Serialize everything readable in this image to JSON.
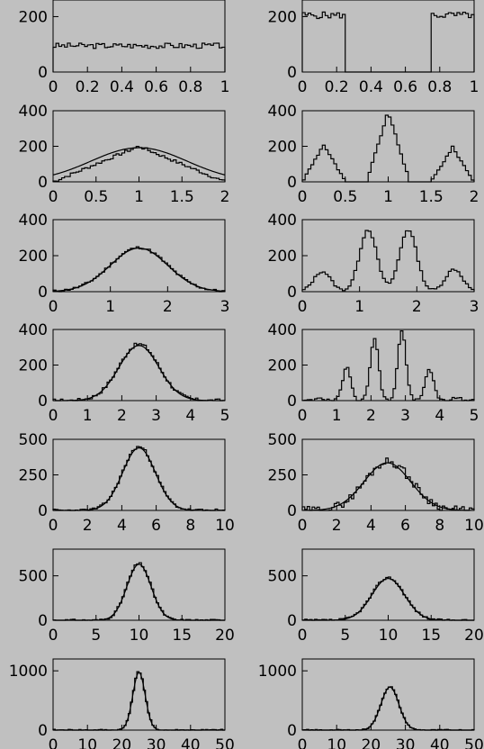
{
  "chart_data": [
    {
      "type": "histogram",
      "panel": "r1-left",
      "xlim": [
        0,
        1
      ],
      "ylim": [
        0,
        260
      ],
      "xticks": [
        0,
        0.2,
        0.4,
        0.6,
        0.8,
        1
      ],
      "xtick_labels": [
        "0",
        "0.2",
        "0.4",
        "0.6",
        "0.8",
        "1"
      ],
      "yticks": [
        0,
        200
      ],
      "ytick_labels": [
        "0",
        "200"
      ],
      "bins": 60,
      "shape": {
        "kind": "flat",
        "level": 95,
        "noise": 10,
        "seed": 3
      },
      "fit": null
    },
    {
      "type": "histogram",
      "panel": "r1-right",
      "xlim": [
        0,
        1
      ],
      "ylim": [
        0,
        260
      ],
      "xticks": [
        0,
        0.2,
        0.4,
        0.6,
        0.8,
        1
      ],
      "xtick_labels": [
        "0",
        "0.2",
        "0.4",
        "0.6",
        "0.8",
        "1"
      ],
      "yticks": [
        0,
        200
      ],
      "ytick_labels": [
        "0",
        "200"
      ],
      "bins": 60,
      "shape": {
        "kind": "gate",
        "level": 205,
        "noise": 12,
        "on": [
          [
            0,
            0.25
          ],
          [
            0.75,
            1
          ]
        ],
        "seed": 5
      },
      "fit": null
    },
    {
      "type": "histogram",
      "panel": "r2-left",
      "xlim": [
        0,
        2
      ],
      "ylim": [
        0,
        400
      ],
      "xticks": [
        0,
        0.5,
        1,
        1.5,
        2
      ],
      "xtick_labels": [
        "0",
        "0.5",
        "1",
        "1.5",
        "2"
      ],
      "yticks": [
        0,
        200,
        400
      ],
      "ytick_labels": [
        "0",
        "200",
        "400"
      ],
      "bins": 60,
      "shape": {
        "kind": "triangle",
        "peak": 200,
        "center": 1,
        "half": 1,
        "noise": 8,
        "seed": 7
      },
      "fit": {
        "kind": "gauss",
        "amp": 192,
        "mean": 1,
        "sigma": 0.56
      }
    },
    {
      "type": "histogram",
      "panel": "r2-right",
      "xlim": [
        0,
        2
      ],
      "ylim": [
        0,
        400
      ],
      "xticks": [
        0,
        0.5,
        1,
        1.5,
        2
      ],
      "xtick_labels": [
        "0",
        "0.5",
        "1",
        "1.5",
        "2"
      ],
      "yticks": [
        0,
        200,
        400
      ],
      "ytick_labels": [
        "0",
        "200",
        "400"
      ],
      "bins": 60,
      "shape": {
        "kind": "triangles",
        "peaks": [
          [
            0.25,
            210,
            0.25
          ],
          [
            1,
            395,
            0.25
          ],
          [
            1.75,
            195,
            0.25
          ]
        ],
        "noise": 6,
        "seed": 9
      },
      "fit": null
    },
    {
      "type": "histogram",
      "panel": "r3-left",
      "xlim": [
        0,
        3
      ],
      "ylim": [
        0,
        400
      ],
      "xticks": [
        0,
        1,
        2,
        3
      ],
      "xtick_labels": [
        "0",
        "1",
        "2",
        "3"
      ],
      "yticks": [
        0,
        200,
        400
      ],
      "ytick_labels": [
        "0",
        "200",
        "400"
      ],
      "bins": 60,
      "shape": {
        "kind": "gauss",
        "amp": 245,
        "mean": 1.5,
        "sigma": 0.5,
        "noise": 7,
        "seed": 11
      },
      "fit": {
        "kind": "gauss",
        "amp": 242,
        "mean": 1.5,
        "sigma": 0.5
      }
    },
    {
      "type": "histogram",
      "panel": "r3-right",
      "xlim": [
        0,
        3
      ],
      "ylim": [
        0,
        400
      ],
      "xticks": [
        0,
        1,
        2,
        3
      ],
      "xtick_labels": [
        "0",
        "1",
        "2",
        "3"
      ],
      "yticks": [
        0,
        200,
        400
      ],
      "ytick_labels": [
        "0",
        "200",
        "400"
      ],
      "bins": 60,
      "shape": {
        "kind": "multigauss",
        "peaks": [
          [
            0.35,
            112,
            0.15
          ],
          [
            1.15,
            345,
            0.15
          ],
          [
            1.85,
            345,
            0.15
          ],
          [
            2.65,
            125,
            0.15
          ]
        ],
        "noise": 6,
        "seed": 13
      },
      "fit": null
    },
    {
      "type": "histogram",
      "panel": "r4-left",
      "xlim": [
        0,
        5
      ],
      "ylim": [
        0,
        400
      ],
      "xticks": [
        0,
        1,
        2,
        3,
        4,
        5
      ],
      "xtick_labels": [
        "0",
        "1",
        "2",
        "3",
        "4",
        "5"
      ],
      "yticks": [
        0,
        200,
        400
      ],
      "ytick_labels": [
        "0",
        "200",
        "400"
      ],
      "bins": 70,
      "shape": {
        "kind": "gauss",
        "amp": 318,
        "mean": 2.5,
        "sigma": 0.58,
        "noise": 10,
        "seed": 17
      },
      "fit": {
        "kind": "gauss",
        "amp": 310,
        "mean": 2.5,
        "sigma": 0.58
      }
    },
    {
      "type": "histogram",
      "panel": "r4-right",
      "xlim": [
        0,
        5
      ],
      "ylim": [
        0,
        400
      ],
      "xticks": [
        0,
        1,
        2,
        3,
        4,
        5
      ],
      "xtick_labels": [
        "0",
        "1",
        "2",
        "3",
        "4",
        "5"
      ],
      "yticks": [
        0,
        200,
        400
      ],
      "ytick_labels": [
        "0",
        "200",
        "400"
      ],
      "bins": 70,
      "shape": {
        "kind": "multigauss",
        "peaks": [
          [
            0.5,
            20,
            0.1
          ],
          [
            1.3,
            190,
            0.12
          ],
          [
            2.1,
            355,
            0.12
          ],
          [
            2.9,
            390,
            0.12
          ],
          [
            3.7,
            180,
            0.12
          ],
          [
            4.5,
            20,
            0.1
          ]
        ],
        "noise": 8,
        "seed": 19
      },
      "fit": null
    },
    {
      "type": "histogram",
      "panel": "r5-left",
      "xlim": [
        0,
        10
      ],
      "ylim": [
        0,
        500
      ],
      "xticks": [
        0,
        2,
        4,
        6,
        8,
        10
      ],
      "xtick_labels": [
        "0",
        "2",
        "4",
        "6",
        "8",
        "10"
      ],
      "yticks": [
        0,
        250,
        500
      ],
      "ytick_labels": [
        "0",
        "250",
        "500"
      ],
      "bins": 70,
      "shape": {
        "kind": "gauss",
        "amp": 448,
        "mean": 5,
        "sigma": 0.95,
        "noise": 10,
        "seed": 23
      },
      "fit": {
        "kind": "gauss",
        "amp": 440,
        "mean": 5,
        "sigma": 0.95
      }
    },
    {
      "type": "histogram",
      "panel": "r5-right",
      "xlim": [
        0,
        10
      ],
      "ylim": [
        0,
        500
      ],
      "xticks": [
        0,
        2,
        4,
        6,
        8,
        10
      ],
      "xtick_labels": [
        "0",
        "2",
        "4",
        "6",
        "8",
        "10"
      ],
      "yticks": [
        0,
        250,
        500
      ],
      "ytick_labels": [
        "0",
        "250",
        "500"
      ],
      "bins": 70,
      "shape": {
        "kind": "gauss",
        "amp": 345,
        "mean": 5,
        "sigma": 1.35,
        "noise": 28,
        "seed": 29
      },
      "fit": {
        "kind": "gauss",
        "amp": 335,
        "mean": 4.95,
        "sigma": 1.35
      }
    },
    {
      "type": "histogram",
      "panel": "r6-left",
      "xlim": [
        0,
        20
      ],
      "ylim": [
        0,
        800
      ],
      "xticks": [
        0,
        5,
        10,
        15,
        20
      ],
      "xtick_labels": [
        "0",
        "5",
        "10",
        "15",
        "20"
      ],
      "yticks": [
        0,
        500
      ],
      "ytick_labels": [
        "0",
        "500"
      ],
      "bins": 70,
      "shape": {
        "kind": "gauss",
        "amp": 640,
        "mean": 10,
        "sigma": 1.4,
        "noise": 12,
        "seed": 31
      },
      "fit": {
        "kind": "gauss",
        "amp": 630,
        "mean": 10,
        "sigma": 1.4
      }
    },
    {
      "type": "histogram",
      "panel": "r6-right",
      "xlim": [
        0,
        20
      ],
      "ylim": [
        0,
        800
      ],
      "xticks": [
        0,
        5,
        10,
        15,
        20
      ],
      "xtick_labels": [
        "0",
        "5",
        "10",
        "15",
        "20"
      ],
      "yticks": [
        0,
        500
      ],
      "ytick_labels": [
        "0",
        "500"
      ],
      "bins": 70,
      "shape": {
        "kind": "gauss",
        "amp": 480,
        "mean": 10,
        "sigma": 1.9,
        "noise": 12,
        "seed": 37
      },
      "fit": {
        "kind": "gauss",
        "amp": 470,
        "mean": 10,
        "sigma": 1.9
      }
    },
    {
      "type": "histogram",
      "panel": "r7-left",
      "xlim": [
        0,
        50
      ],
      "ylim": [
        0,
        1200
      ],
      "xticks": [
        0,
        10,
        20,
        30,
        40,
        50
      ],
      "xtick_labels": [
        "0",
        "10",
        "20",
        "30",
        "40",
        "50"
      ],
      "yticks": [
        0,
        1000
      ],
      "ytick_labels": [
        "0",
        "1000"
      ],
      "bins": 80,
      "shape": {
        "kind": "gauss",
        "amp": 990,
        "mean": 25,
        "sigma": 1.8,
        "noise": 14,
        "seed": 41
      },
      "fit": {
        "kind": "gauss",
        "amp": 975,
        "mean": 25,
        "sigma": 1.8
      }
    },
    {
      "type": "histogram",
      "panel": "r7-right",
      "xlim": [
        0,
        50
      ],
      "ylim": [
        0,
        1200
      ],
      "xticks": [
        0,
        10,
        20,
        30,
        40,
        50
      ],
      "xtick_labels": [
        "0",
        "10",
        "20",
        "30",
        "40",
        "50"
      ],
      "yticks": [
        0,
        1000
      ],
      "ytick_labels": [
        "0",
        "1000"
      ],
      "bins": 80,
      "shape": {
        "kind": "gauss",
        "amp": 735,
        "mean": 25.5,
        "sigma": 2.6,
        "noise": 12,
        "seed": 43
      },
      "fit": {
        "kind": "gauss",
        "amp": 725,
        "mean": 25.5,
        "sigma": 2.6
      }
    }
  ]
}
